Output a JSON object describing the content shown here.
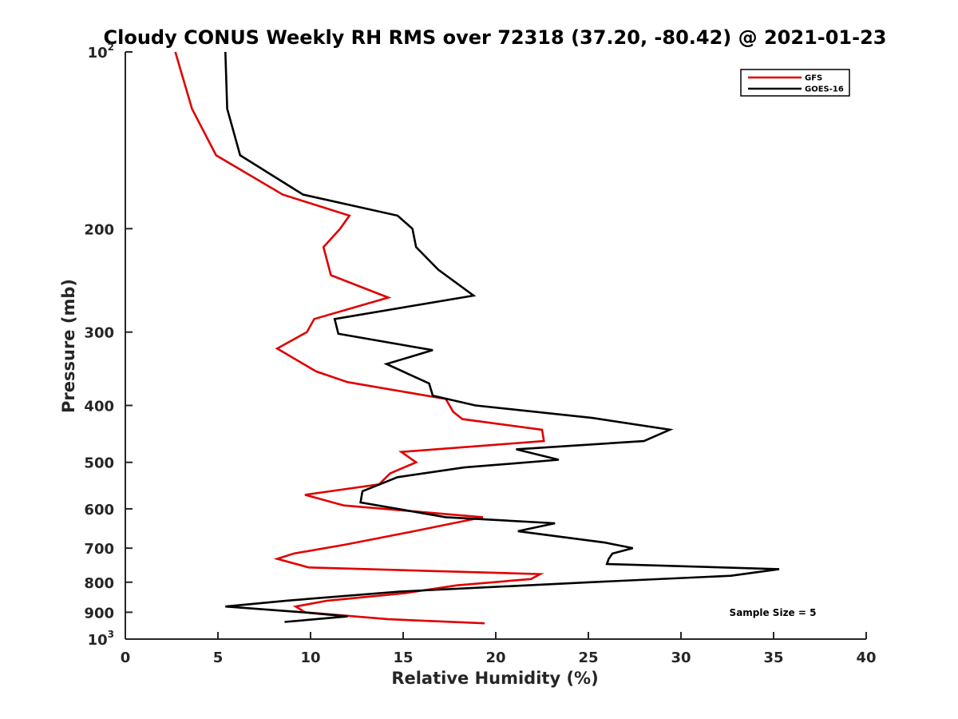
{
  "chart_data": {
    "type": "line",
    "title": "Cloudy CONUS Weekly RH RMS over 72318 (37.20, -80.42) @ 2021-01-23",
    "xlabel": "Relative Humidity (%)",
    "ylabel": "Pressure (mb)",
    "xlim": [
      0,
      40
    ],
    "ylim": [
      100,
      1000
    ],
    "yscale": "log",
    "yreversed": true,
    "grid": false,
    "legend_position": "top-right",
    "x_ticks": [
      0,
      5,
      10,
      15,
      20,
      25,
      30,
      35,
      40
    ],
    "x_tick_labels": [
      "0",
      "5",
      "10",
      "15",
      "20",
      "25",
      "30",
      "35",
      "40"
    ],
    "y_ticks": [
      100,
      200,
      300,
      400,
      500,
      600,
      700,
      800,
      900,
      1000
    ],
    "y_tick_labels": [
      {
        "base": "10",
        "sup": "2"
      },
      {
        "base": "200",
        "sup": ""
      },
      {
        "base": "300",
        "sup": ""
      },
      {
        "base": "400",
        "sup": ""
      },
      {
        "base": "500",
        "sup": ""
      },
      {
        "base": "600",
        "sup": ""
      },
      {
        "base": "700",
        "sup": ""
      },
      {
        "base": "800",
        "sup": ""
      },
      {
        "base": "900",
        "sup": ""
      },
      {
        "base": "10",
        "sup": "3"
      }
    ],
    "annotation": "Sample Size = 5",
    "series": [
      {
        "name": "GFS",
        "color": "#e00000",
        "points": [
          [
            2.7,
            100
          ],
          [
            3.6,
            125
          ],
          [
            4.9,
            150
          ],
          [
            8.5,
            175
          ],
          [
            12.1,
            190
          ],
          [
            11.6,
            200
          ],
          [
            10.7,
            215
          ],
          [
            11.1,
            240
          ],
          [
            14.2,
            262
          ],
          [
            10.2,
            285
          ],
          [
            9.8,
            300
          ],
          [
            8.2,
            320
          ],
          [
            10.3,
            350
          ],
          [
            12.0,
            365
          ],
          [
            17.3,
            390
          ],
          [
            17.7,
            410
          ],
          [
            18.2,
            422
          ],
          [
            22.5,
            440
          ],
          [
            22.6,
            460
          ],
          [
            14.9,
            480
          ],
          [
            15.7,
            500
          ],
          [
            14.3,
            522
          ],
          [
            13.7,
            545
          ],
          [
            9.7,
            568
          ],
          [
            11.8,
            592
          ],
          [
            19.3,
            620
          ],
          [
            15.6,
            655
          ],
          [
            11.9,
            690
          ],
          [
            9.1,
            715
          ],
          [
            8.2,
            730
          ],
          [
            9.9,
            755
          ],
          [
            22.4,
            775
          ],
          [
            21.9,
            790
          ],
          [
            17.9,
            810
          ],
          [
            15.1,
            835
          ],
          [
            10.9,
            860
          ],
          [
            9.2,
            880
          ],
          [
            9.7,
            900
          ],
          [
            14.2,
            925
          ],
          [
            19.4,
            940
          ]
        ]
      },
      {
        "name": "GOES-16",
        "color": "#000000",
        "points": [
          [
            5.4,
            100
          ],
          [
            5.5,
            125
          ],
          [
            6.2,
            150
          ],
          [
            9.6,
            175
          ],
          [
            14.7,
            190
          ],
          [
            15.5,
            200
          ],
          [
            15.7,
            215
          ],
          [
            16.9,
            235
          ],
          [
            18.8,
            260
          ],
          [
            11.3,
            285
          ],
          [
            11.5,
            302
          ],
          [
            16.6,
            322
          ],
          [
            14.1,
            340
          ],
          [
            16.4,
            367
          ],
          [
            16.6,
            385
          ],
          [
            18.9,
            400
          ],
          [
            25.2,
            420
          ],
          [
            29.4,
            440
          ],
          [
            28.0,
            460
          ],
          [
            21.1,
            475
          ],
          [
            23.4,
            495
          ],
          [
            18.3,
            510
          ],
          [
            14.7,
            530
          ],
          [
            12.8,
            560
          ],
          [
            12.7,
            585
          ],
          [
            17.3,
            620
          ],
          [
            23.2,
            635
          ],
          [
            21.2,
            655
          ],
          [
            25.9,
            685
          ],
          [
            27.4,
            700
          ],
          [
            26.3,
            715
          ],
          [
            26.1,
            730
          ],
          [
            26.0,
            745
          ],
          [
            35.3,
            760
          ],
          [
            32.7,
            780
          ],
          [
            25.1,
            800
          ],
          [
            14.8,
            830
          ],
          [
            8.7,
            860
          ],
          [
            5.4,
            880
          ],
          [
            9.6,
            900
          ],
          [
            12.0,
            915
          ],
          [
            8.6,
            935
          ]
        ]
      }
    ]
  }
}
